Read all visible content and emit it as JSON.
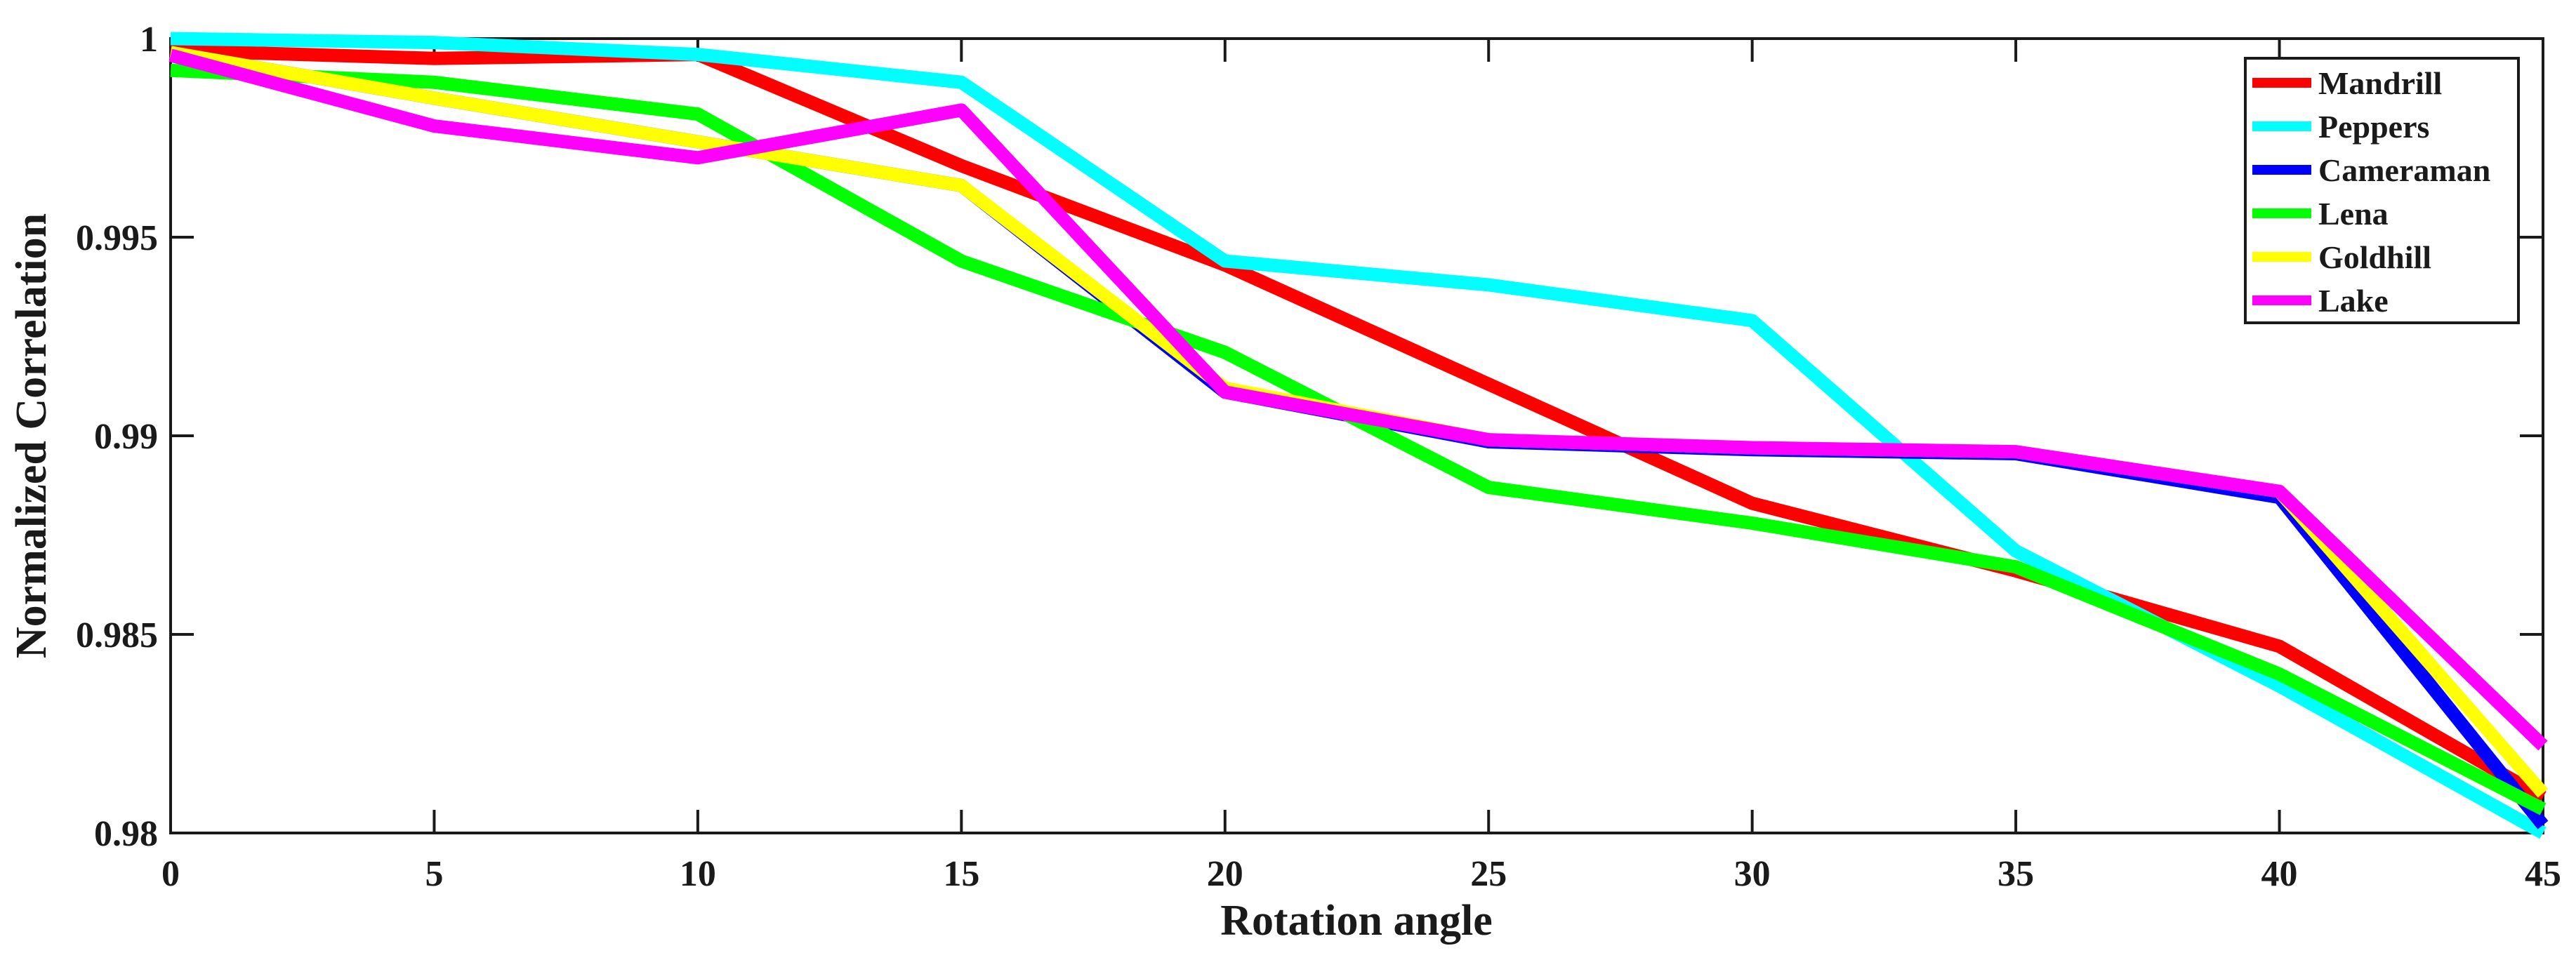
{
  "figure": {
    "background": "#ffffff",
    "axis_color": "#1a1a1a"
  },
  "chart_data": {
    "type": "line",
    "title": "",
    "xlabel": "Rotation angle",
    "ylabel": "Normalized Correlation",
    "xlim": [
      0,
      45
    ],
    "ylim": [
      0.98,
      1.0
    ],
    "grid": false,
    "legend_position": "top-right",
    "x": [
      0,
      5,
      10,
      15,
      20,
      25,
      30,
      35,
      40,
      45
    ],
    "x_tick_labels": [
      "0",
      "5",
      "10",
      "15",
      "20",
      "25",
      "30",
      "35",
      "40",
      "45"
    ],
    "y_ticks": [
      1,
      0.995,
      0.99,
      0.985,
      0.98
    ],
    "y_tick_labels": [
      "1",
      "0.995",
      "0.99",
      "0.985",
      "0.98"
    ],
    "series": [
      {
        "name": "Mandrill",
        "color": "#FF0000",
        "values": [
          0.9997,
          0.9995,
          0.9996,
          0.9968,
          0.9943,
          0.9913,
          0.9883,
          0.9866,
          0.9847,
          0.9809
        ]
      },
      {
        "name": "Peppers",
        "color": "#00FFFF",
        "values": [
          1.0,
          0.9999,
          0.9996,
          0.9989,
          0.9944,
          0.9938,
          0.9929,
          0.9871,
          0.9837,
          0.98
        ]
      },
      {
        "name": "Cameraman",
        "color": "#0000FF",
        "values": [
          0.99965,
          0.9985,
          0.9974,
          0.9963,
          0.9911,
          0.98985,
          0.98965,
          0.98955,
          0.98845,
          0.9802
        ]
      },
      {
        "name": "Lena",
        "color": "#00FF00",
        "values": [
          0.9992,
          0.9989,
          0.9981,
          0.9944,
          0.9921,
          0.9887,
          0.9878,
          0.9867,
          0.984,
          0.9806
        ]
      },
      {
        "name": "Goldhill",
        "color": "#FFFF00",
        "values": [
          0.99965,
          0.9985,
          0.9974,
          0.9963,
          0.9912,
          0.9899,
          0.9897,
          0.9896,
          0.9886,
          0.981
        ]
      },
      {
        "name": "Lake",
        "color": "#FF00FF",
        "values": [
          0.99958,
          0.9978,
          0.997,
          0.9982,
          0.9911,
          0.9899,
          0.9897,
          0.9896,
          0.9886,
          0.9822
        ]
      }
    ]
  }
}
